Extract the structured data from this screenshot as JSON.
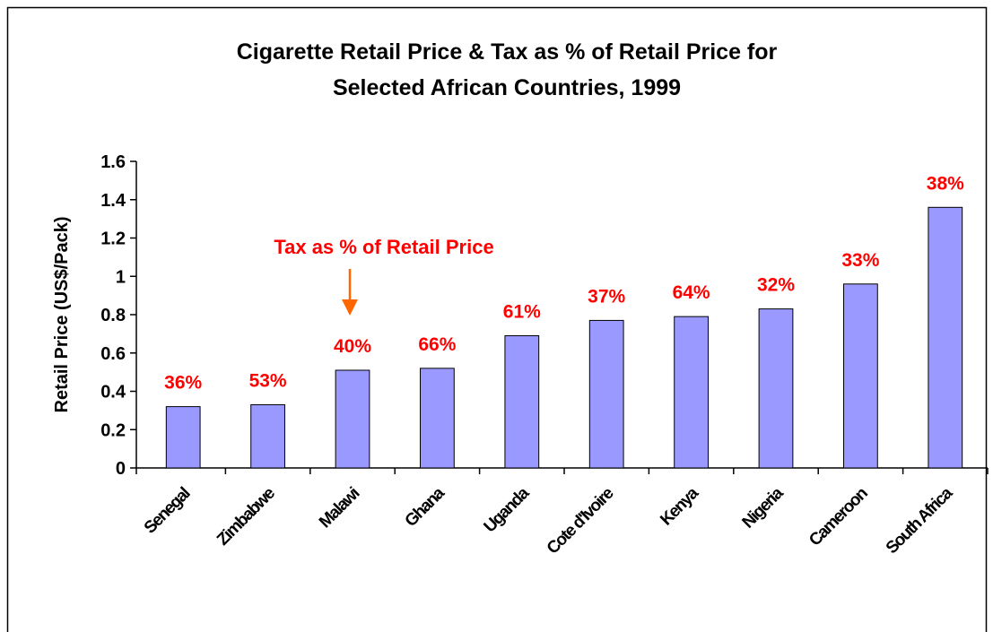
{
  "chart_data": {
    "type": "bar",
    "title": [
      "Cigarette Retail Price & Tax as % of Retail Price for",
      "Selected African Countries, 1999"
    ],
    "y_label": "Retail Price (US$/Pack)",
    "annotation": "Tax as % of Retail Price",
    "categories": [
      "Senegal",
      "Zimbabwe",
      "Malawi",
      "Ghana",
      "Uganda",
      "Cote d'Ivoire",
      "Kenya",
      "Nigeria",
      "Cameroon",
      "South Africa"
    ],
    "values": [
      0.32,
      0.33,
      0.51,
      0.52,
      0.69,
      0.77,
      0.79,
      0.83,
      0.96,
      1.36
    ],
    "tax_labels": [
      "36%",
      "53%",
      "40%",
      "66%",
      "61%",
      "37%",
      "64%",
      "32%",
      "33%",
      "38%"
    ],
    "color": "#9999ff",
    "ylim": [
      0,
      1.6
    ],
    "yticks": [
      0,
      0.2,
      0.4,
      0.6,
      0.8,
      1,
      1.2,
      1.4,
      1.6
    ],
    "grid": false
  }
}
